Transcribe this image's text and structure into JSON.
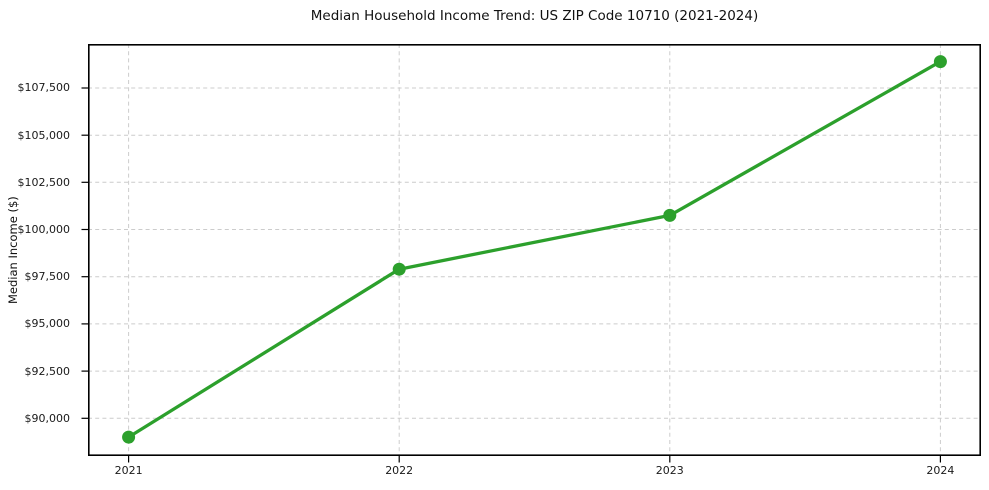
{
  "figure": {
    "background": "#ffffff"
  },
  "chart_data": {
    "type": "line",
    "title": "Median Household Income Trend: US ZIP Code 10710 (2021-2024)",
    "xlabel": "",
    "ylabel": "Median Income ($)",
    "categories": [
      "2021",
      "2022",
      "2023",
      "2024"
    ],
    "x": [
      2021,
      2022,
      2023,
      2024
    ],
    "series": [
      {
        "name": "Median Household Income",
        "values": [
          89000,
          97900,
          100750,
          108900
        ],
        "color": "#2ca02c",
        "marker": "circle",
        "marker_size": 13,
        "line_width": 3.3
      }
    ],
    "y_ticks": [
      90000,
      92500,
      95000,
      97500,
      100000,
      102500,
      105000,
      107500
    ],
    "y_tick_labels": [
      "$90,000",
      "$92,500",
      "$95,000",
      "$97,500",
      "$100,000",
      "$102,500",
      "$105,000",
      "$107,500"
    ],
    "ylim": [
      88000,
      109830
    ],
    "xlim": [
      2020.85,
      2024.15
    ],
    "grid": true,
    "grid_style": "dashed",
    "grid_color": "#cccccc",
    "axis_color": "#000000",
    "tick_label_color": "#1a1a1a",
    "legend": "none"
  }
}
